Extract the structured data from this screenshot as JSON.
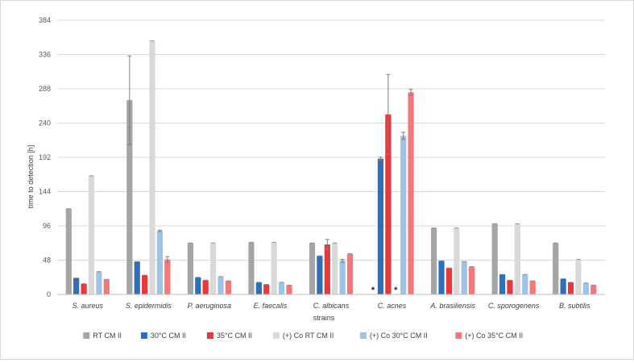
{
  "chart_data": {
    "type": "bar",
    "ylabel": "time to detection [h]",
    "xlabel": "strains",
    "ylim": [
      0,
      384
    ],
    "yticks": [
      0,
      48,
      96,
      144,
      192,
      240,
      288,
      336,
      384
    ],
    "grid": "horizontal",
    "legend_position": "bottom",
    "categories": [
      "S. aureus",
      "S. epidermidis",
      "P. aeruginosa",
      "E. faecalis",
      "C. albicans",
      "C. acnes",
      "A. brasiliensis",
      "C. sporogenens",
      "B. subtilis"
    ],
    "series": [
      {
        "name": "RT CM II",
        "color": "#a5a5a5",
        "values": [
          120,
          272,
          72,
          73,
          72,
          null,
          93,
          99,
          72
        ],
        "errors": [
          0,
          62,
          0,
          0,
          0,
          0,
          0,
          0,
          0
        ]
      },
      {
        "name": "30°C CM II",
        "color": "#2e6fba",
        "values": [
          23,
          46,
          24,
          17,
          54,
          190,
          47,
          28,
          22
        ],
        "errors": [
          0,
          0,
          0,
          0,
          0,
          2,
          0,
          0,
          0
        ]
      },
      {
        "name": "35°C CM II",
        "color": "#e8383b",
        "values": [
          15,
          27,
          20,
          14,
          70,
          252,
          37,
          20,
          17
        ],
        "errors": [
          0,
          0,
          0,
          0,
          7,
          56,
          0,
          0,
          0
        ]
      },
      {
        "name": "(+) Co RT CM II",
        "color": "#d9d9d9",
        "values": [
          166,
          355,
          72,
          73,
          72,
          null,
          93,
          99,
          49
        ],
        "errors": [
          0,
          0,
          0,
          0,
          0,
          0,
          0,
          0,
          0
        ]
      },
      {
        "name": "(+) Co 30°C CM II",
        "color": "#9dc3e6",
        "values": [
          32,
          89,
          25,
          17,
          47,
          222,
          46,
          28,
          16
        ],
        "errors": [
          0,
          1,
          0,
          0,
          2,
          5,
          0,
          0,
          0
        ]
      },
      {
        "name": "(+) Co 35°C CM II",
        "color": "#f4787a",
        "values": [
          21,
          49,
          19,
          13,
          57,
          283,
          39,
          19,
          13
        ],
        "errors": [
          0,
          4,
          0,
          0,
          0,
          4,
          0,
          0,
          0
        ]
      }
    ],
    "markers": [
      {
        "category": "C. acnes",
        "series": "RT CM II",
        "text": "*"
      },
      {
        "category": "C. acnes",
        "series": "(+) Co RT CM II",
        "text": "*"
      }
    ]
  }
}
